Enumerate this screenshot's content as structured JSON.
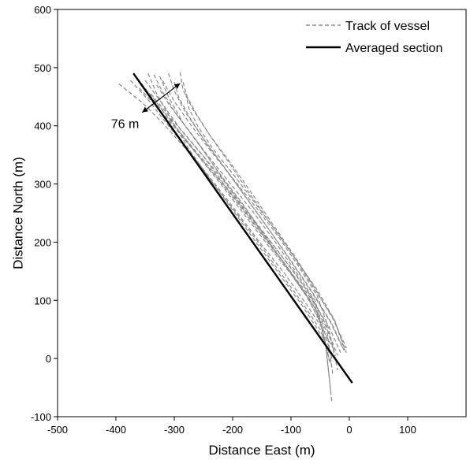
{
  "chart_data": {
    "type": "line",
    "title": "",
    "xlabel": "Distance East (m)",
    "ylabel": "Distance North (m)",
    "xlim": [
      -500,
      200
    ],
    "ylim": [
      -100,
      600
    ],
    "xticks": [
      -500,
      -400,
      -300,
      -200,
      -100,
      0,
      100
    ],
    "yticks": [
      -100,
      0,
      100,
      200,
      300,
      400,
      500,
      600
    ],
    "grid": false,
    "legend_position": "top-right",
    "legend": [
      {
        "label": "Track of vessel",
        "style": "dashed",
        "color": "#888888"
      },
      {
        "label": "Averaged section",
        "style": "solid",
        "color": "#000000"
      }
    ],
    "averaged_section": {
      "name": "Averaged section",
      "x": [
        -370,
        5
      ],
      "y": [
        490,
        -42
      ]
    },
    "annotation": {
      "text": "76 m",
      "from": [
        -355,
        423
      ],
      "to": [
        -290,
        473
      ]
    },
    "tracks": [
      {
        "x": [
          -395,
          -355,
          -320,
          -280,
          -240,
          -200,
          -160,
          -120,
          -80,
          -50,
          -35
        ],
        "y": [
          472,
          440,
          405,
          360,
          310,
          258,
          205,
          150,
          95,
          50,
          10
        ]
      },
      {
        "x": [
          -375,
          -345,
          -310,
          -270,
          -230,
          -190,
          -150,
          -110,
          -75,
          -45,
          -25
        ],
        "y": [
          478,
          445,
          400,
          350,
          300,
          248,
          195,
          145,
          95,
          50,
          12
        ]
      },
      {
        "x": [
          -345,
          -330,
          -305,
          -275,
          -240,
          -200,
          -160,
          -120,
          -80,
          -45,
          -30
        ],
        "y": [
          490,
          455,
          410,
          360,
          310,
          255,
          200,
          145,
          90,
          35,
          -15
        ]
      },
      {
        "x": [
          -335,
          -320,
          -295,
          -262,
          -228,
          -190,
          -150,
          -110,
          -70,
          -40,
          -20
        ],
        "y": [
          488,
          458,
          418,
          375,
          325,
          270,
          218,
          160,
          105,
          55,
          5
        ]
      },
      {
        "x": [
          -325,
          -310,
          -285,
          -252,
          -218,
          -180,
          -145,
          -105,
          -65,
          -35,
          -15
        ],
        "y": [
          485,
          450,
          405,
          360,
          312,
          262,
          210,
          155,
          102,
          55,
          10
        ]
      },
      {
        "x": [
          -310,
          -300,
          -280,
          -250,
          -215,
          -178,
          -140,
          -102,
          -65,
          -32,
          -10
        ],
        "y": [
          490,
          460,
          422,
          378,
          330,
          278,
          225,
          170,
          115,
          62,
          15
        ]
      },
      {
        "x": [
          -300,
          -292,
          -272,
          -245,
          -210,
          -172,
          -135,
          -98,
          -62,
          -30,
          -8
        ],
        "y": [
          475,
          448,
          412,
          370,
          322,
          270,
          218,
          165,
          112,
          60,
          12
        ]
      },
      {
        "x": [
          -290,
          -285,
          -268,
          -240,
          -205,
          -168,
          -132,
          -95,
          -60,
          -28,
          -5
        ],
        "y": [
          492,
          462,
          428,
          385,
          338,
          285,
          232,
          178,
          122,
          68,
          18
        ]
      },
      {
        "x": [
          -285,
          -278,
          -262,
          -238,
          -205,
          -170,
          -132,
          -95,
          -60,
          -25,
          -5
        ],
        "y": [
          475,
          450,
          420,
          382,
          335,
          282,
          228,
          175,
          120,
          65,
          10
        ]
      },
      {
        "x": [
          -360,
          -335,
          -300,
          -262,
          -222,
          -182,
          -142,
          -100,
          -62,
          -38,
          -28
        ],
        "y": [
          465,
          438,
          398,
          352,
          302,
          250,
          198,
          145,
          92,
          45,
          -30
        ]
      },
      {
        "x": [
          -350,
          -322,
          -290,
          -252,
          -215,
          -175,
          -135,
          -95,
          -62,
          -42,
          -32
        ],
        "y": [
          478,
          440,
          395,
          350,
          300,
          250,
          200,
          150,
          100,
          35,
          -55
        ]
      },
      {
        "x": [
          -330,
          -310,
          -280,
          -245,
          -205,
          -165,
          -128,
          -92,
          -58,
          -40,
          -30
        ],
        "y": [
          470,
          438,
          398,
          352,
          302,
          252,
          202,
          150,
          98,
          20,
          -75
        ]
      },
      {
        "x": [
          -320,
          -300,
          -272,
          -240,
          -200,
          -160,
          -122,
          -88,
          -55,
          -35,
          -20
        ],
        "y": [
          478,
          442,
          402,
          360,
          310,
          260,
          210,
          160,
          108,
          50,
          -20
        ]
      },
      {
        "x": [
          -370,
          -340,
          -305,
          -268,
          -228,
          -188,
          -148,
          -108,
          -72,
          -45,
          -30
        ],
        "y": [
          490,
          452,
          408,
          360,
          312,
          262,
          210,
          158,
          105,
          55,
          0
        ]
      },
      {
        "x": [
          -355,
          -330,
          -298,
          -262,
          -224,
          -186,
          -148,
          -110,
          -74,
          -48,
          -34
        ],
        "y": [
          470,
          438,
          398,
          355,
          310,
          262,
          212,
          162,
          110,
          58,
          -5
        ]
      },
      {
        "x": [
          -280,
          -275,
          -260,
          -235,
          -200,
          -162,
          -125,
          -90,
          -55,
          -25,
          -8
        ],
        "y": [
          455,
          430,
          400,
          362,
          318,
          268,
          218,
          168,
          118,
          65,
          15
        ]
      },
      {
        "x": [
          -340,
          -318,
          -288,
          -252,
          -214,
          -176,
          -138,
          -100,
          -64,
          -40,
          -24
        ],
        "y": [
          455,
          428,
          392,
          350,
          304,
          255,
          205,
          155,
          105,
          58,
          5
        ]
      }
    ]
  }
}
